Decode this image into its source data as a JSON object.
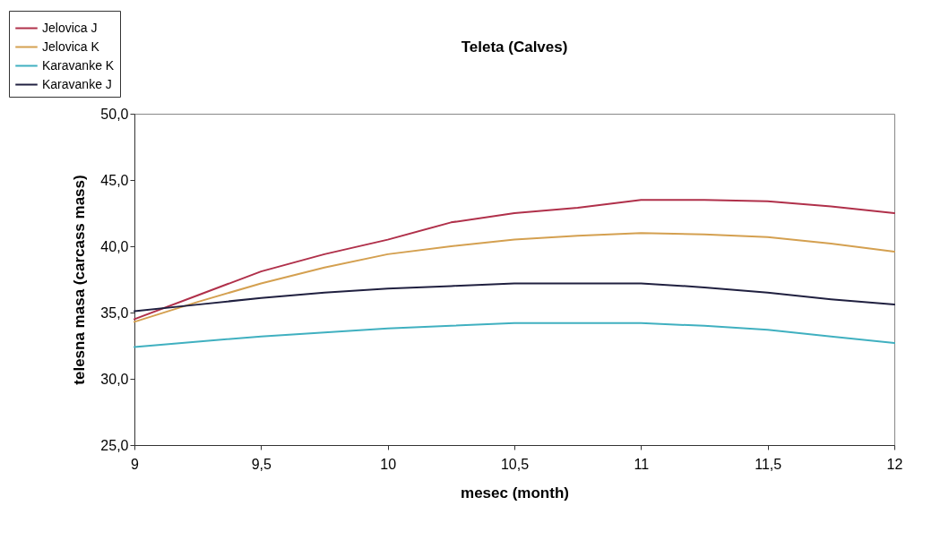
{
  "chart_data": {
    "type": "line",
    "title": "Teleta (Calves)",
    "xlabel": "mesec (month)",
    "ylabel": "telesna masa (carcass mass)",
    "x": [
      9,
      9.25,
      9.5,
      9.75,
      10,
      10.25,
      10.5,
      10.75,
      11,
      11.25,
      11.5,
      11.75,
      12
    ],
    "series": [
      {
        "name": "Jelovica J",
        "color": "#b0304a",
        "values": [
          34.5,
          36.3,
          38.1,
          39.4,
          40.5,
          41.8,
          42.5,
          42.9,
          43.5,
          43.5,
          43.4,
          43.0,
          42.5
        ]
      },
      {
        "name": "Jelovica K",
        "color": "#d4a050",
        "values": [
          34.3,
          35.8,
          37.2,
          38.4,
          39.4,
          40.0,
          40.5,
          40.8,
          41.0,
          40.9,
          40.7,
          40.2,
          39.6
        ]
      },
      {
        "name": "Karavanke K",
        "color": "#40b0c0",
        "values": [
          32.4,
          32.8,
          33.2,
          33.5,
          33.8,
          34.0,
          34.2,
          34.2,
          34.2,
          34.0,
          33.7,
          33.2,
          32.7
        ]
      },
      {
        "name": "Karavanke J",
        "color": "#202040",
        "values": [
          35.1,
          35.6,
          36.1,
          36.5,
          36.8,
          37.0,
          37.2,
          37.2,
          37.2,
          36.9,
          36.5,
          36.0,
          35.6
        ]
      }
    ],
    "xlim": [
      9,
      12
    ],
    "xticks": [
      9,
      {
        "value": 9.5,
        "label": "9,5"
      },
      10,
      {
        "value": 10.5,
        "label": "10,5"
      },
      11,
      {
        "value": 11.5,
        "label": "11,5"
      },
      12
    ],
    "ylim": [
      25,
      50
    ],
    "yticks": [
      {
        "value": 25,
        "label": "25,0"
      },
      {
        "value": 30,
        "label": "30,0"
      },
      {
        "value": 35,
        "label": "35,0"
      },
      {
        "value": 40,
        "label": "40,0"
      },
      {
        "value": 45,
        "label": "45,0"
      },
      {
        "value": 50,
        "label": "50,0"
      }
    ],
    "grid": false,
    "legend": "top left",
    "marker": "none",
    "line_style": "solid"
  }
}
